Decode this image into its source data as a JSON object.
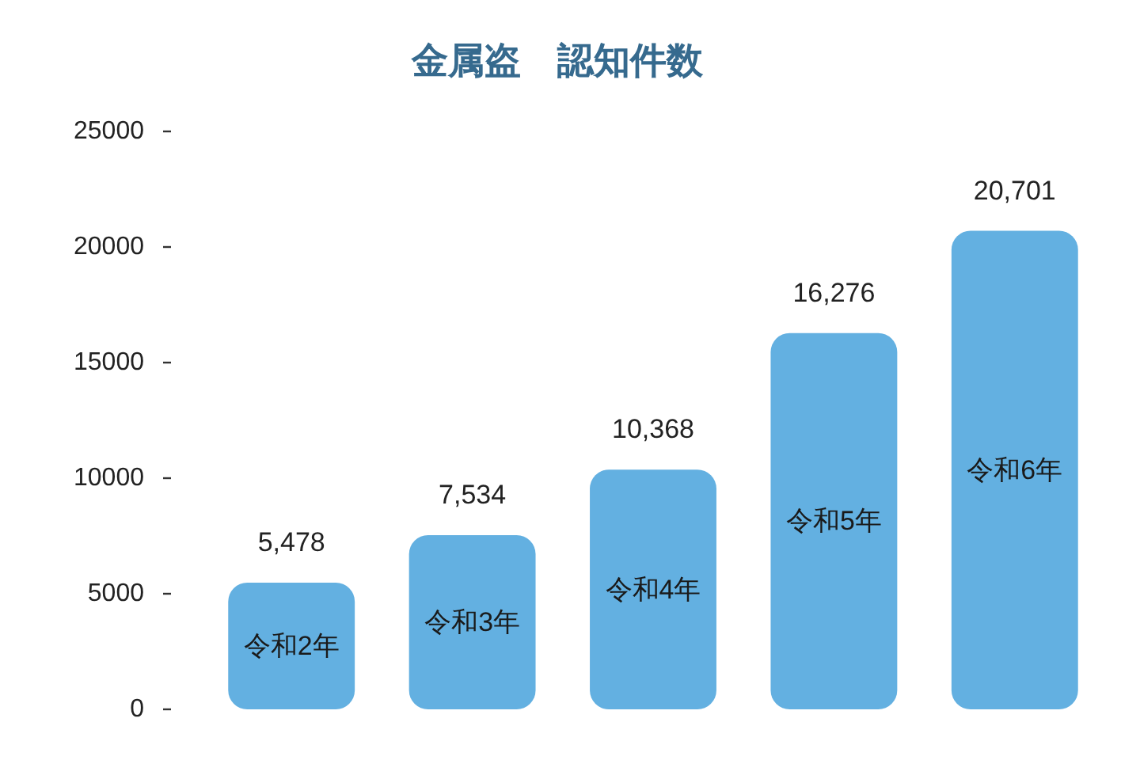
{
  "chart_data": {
    "type": "bar",
    "title": "金属盗　認知件数",
    "categories": [
      "令和2年",
      "令和3年",
      "令和4年",
      "令和5年",
      "令和6年"
    ],
    "values": [
      5478,
      7534,
      10368,
      16276,
      20701
    ],
    "value_labels": [
      "5,478",
      "7,534",
      "10,368",
      "16,276",
      "20,701"
    ],
    "color": "#63b0e1",
    "ylim": [
      0,
      25000
    ],
    "yticks": [
      0,
      5000,
      10000,
      15000,
      20000,
      25000
    ]
  }
}
